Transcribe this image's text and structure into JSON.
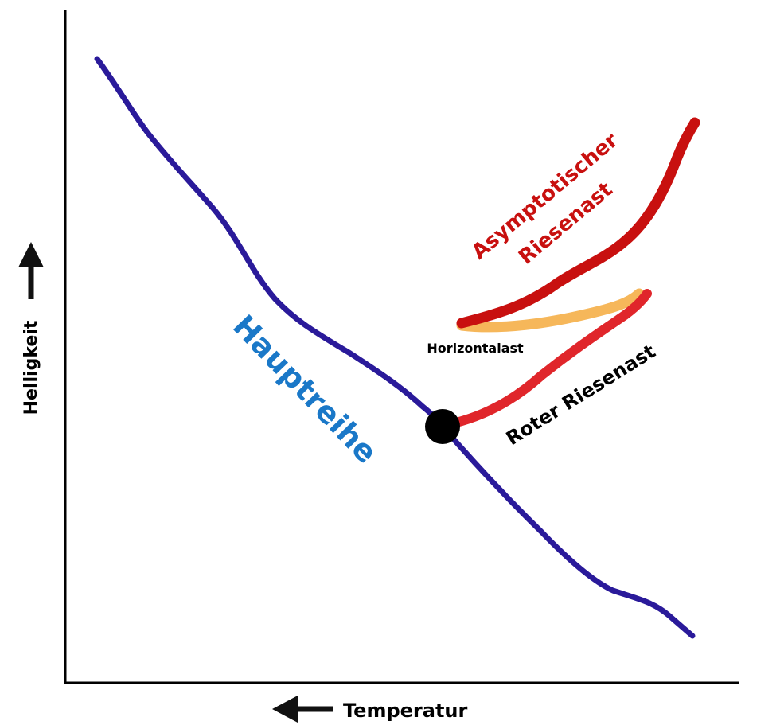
{
  "axes": {
    "y_label": "Helligkeit",
    "x_label": "Temperatur"
  },
  "branches": {
    "main_sequence": "Hauptreihe",
    "red_giant_branch": "Roter Riesenast",
    "horizontal_branch": "Horizontalast",
    "asymptotic_giant_branch_line1": "Asymptotischer",
    "asymptotic_giant_branch_line2": "Riesenast"
  },
  "colors": {
    "main_sequence": "#2a1a9a",
    "red_giant_branch": "#e0262b",
    "horizontal_branch": "#f6b75a",
    "asymptotic_giant_branch": "#c8100f",
    "main_sequence_label": "#1a78c8",
    "agb_label": "#c8100f",
    "turnoff_point": "#000000"
  },
  "icons": {
    "y_arrow": "arrow-up-icon",
    "x_arrow": "arrow-left-icon"
  }
}
